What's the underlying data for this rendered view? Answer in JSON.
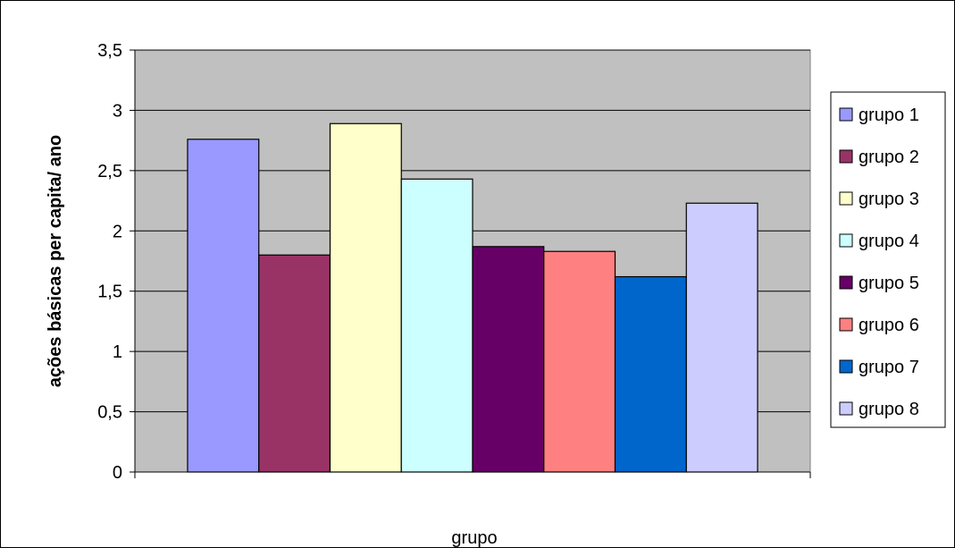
{
  "chart_data": {
    "type": "bar",
    "title": "",
    "xlabel": "grupo",
    "ylabel": "ações básicas per capita/ ano",
    "ylim": [
      0,
      3.5
    ],
    "yticks": [
      "0",
      "0,5",
      "1",
      "1,5",
      "2",
      "2,5",
      "3",
      "3,5"
    ],
    "grid": true,
    "legend_position": "right",
    "series": [
      {
        "name": "grupo 1",
        "value": 2.76,
        "color": "#9999FF"
      },
      {
        "name": "grupo 2",
        "value": 1.8,
        "color": "#993366"
      },
      {
        "name": "grupo 3",
        "value": 2.89,
        "color": "#FFFFCC"
      },
      {
        "name": "grupo 4",
        "value": 2.43,
        "color": "#CCFFFF"
      },
      {
        "name": "grupo 5",
        "value": 1.87,
        "color": "#660066"
      },
      {
        "name": "grupo 6",
        "value": 1.83,
        "color": "#FF8080"
      },
      {
        "name": "grupo 7",
        "value": 1.62,
        "color": "#0066CC"
      },
      {
        "name": "grupo 8",
        "value": 2.23,
        "color": "#CCCCFF"
      }
    ],
    "plot_background": "#C0C0C0"
  }
}
